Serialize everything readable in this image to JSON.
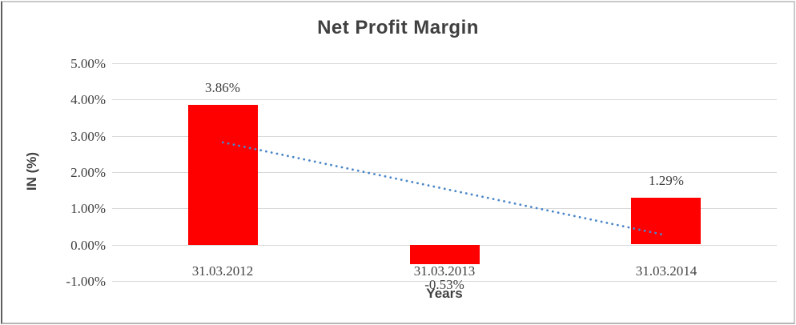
{
  "window": {
    "background": "#FFFFFF",
    "frame_border_color": "#C9C9C9"
  },
  "chart_data": {
    "type": "bar",
    "title": "Net Profit Margin",
    "categories": [
      "31.03.2012",
      "31.03.2013",
      "31.03.2014"
    ],
    "values": [
      3.86,
      -0.53,
      1.29
    ],
    "data_labels": [
      "3.86%",
      "-0.53%",
      "1.29%"
    ],
    "xlabel": "Years",
    "ylabel": "IN (%)",
    "ylim": [
      -1,
      5
    ],
    "ytick_step": 1,
    "ytick_labels": [
      "5.00%",
      "4.00%",
      "3.00%",
      "2.00%",
      "1.00%",
      "0.00%",
      "-1.00%"
    ],
    "grid": true,
    "legend": "none",
    "bar_color": "#FF0000",
    "gridline_color": "#D9D9D9",
    "text_color": "#404040",
    "trendline": {
      "type": "linear",
      "style": "dotted",
      "color": "#4A86C8",
      "start_value": 2.82,
      "end_value": 0.26
    }
  }
}
